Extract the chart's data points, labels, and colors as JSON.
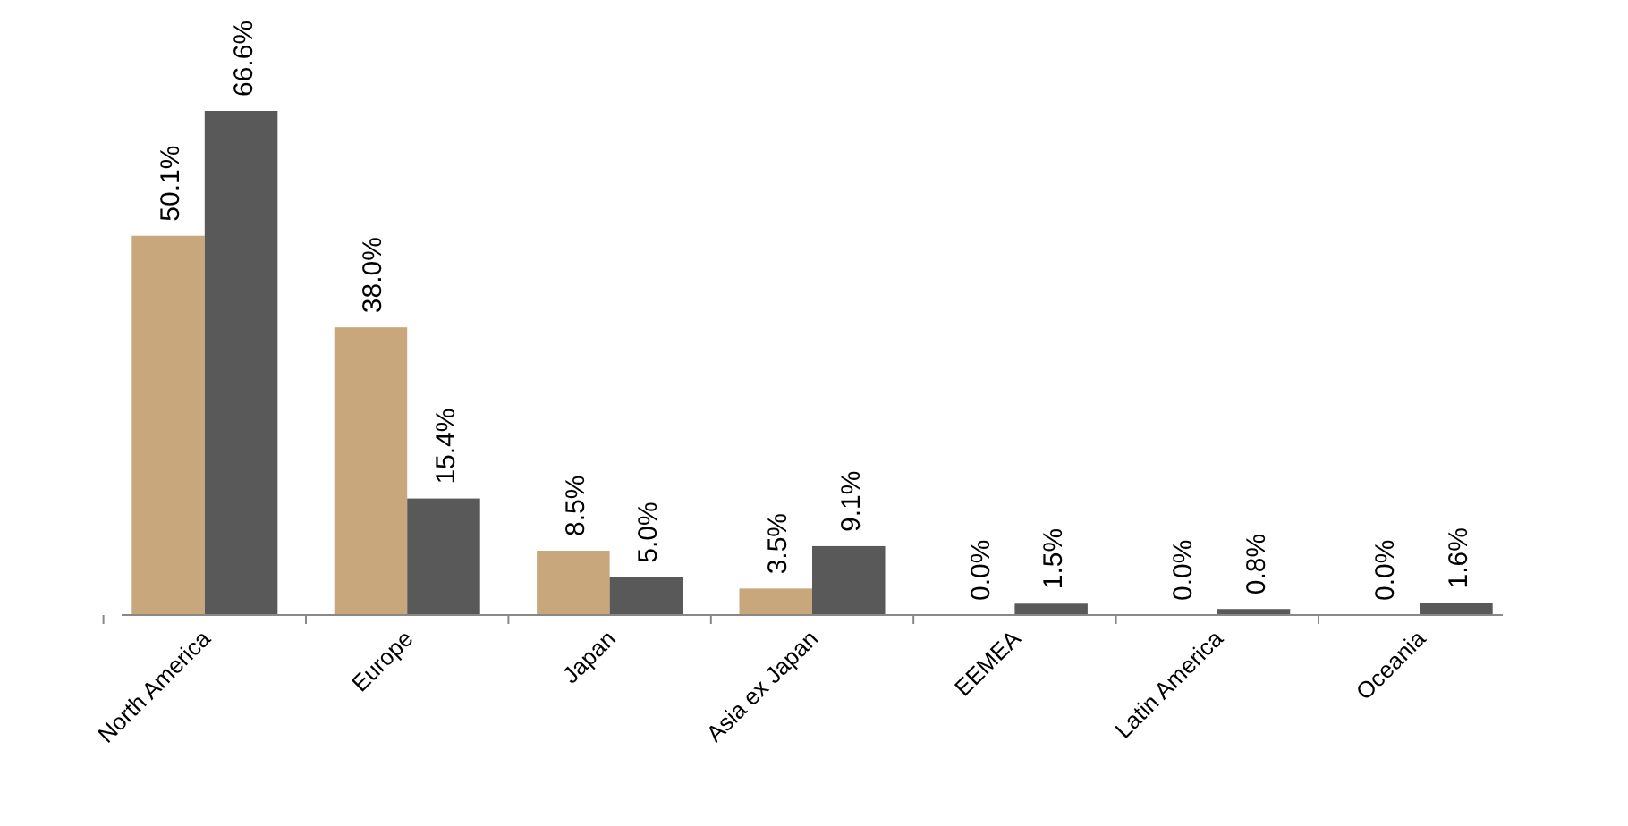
{
  "chart_data": {
    "type": "bar",
    "categories": [
      "North America",
      "Europe",
      "Japan",
      "Asia ex Japan",
      "EEMEA",
      "Latin America",
      "Oceania"
    ],
    "series": [
      {
        "color": "#c9a77c",
        "values": [
          50.1,
          38.0,
          8.5,
          3.5,
          0.0,
          0.0,
          0.0
        ],
        "value_labels": [
          "50.1%",
          "38.0%",
          "8.5%",
          "3.5%",
          "0.0%",
          "0.0%",
          "0.0%"
        ]
      },
      {
        "color": "#595959",
        "values": [
          66.6,
          15.4,
          5.0,
          9.1,
          1.5,
          0.8,
          1.6
        ],
        "value_labels": [
          "66.6%",
          "15.4%",
          "5.0%",
          "9.1%",
          "1.5%",
          "0.8%",
          "1.6%"
        ]
      }
    ]
  }
}
